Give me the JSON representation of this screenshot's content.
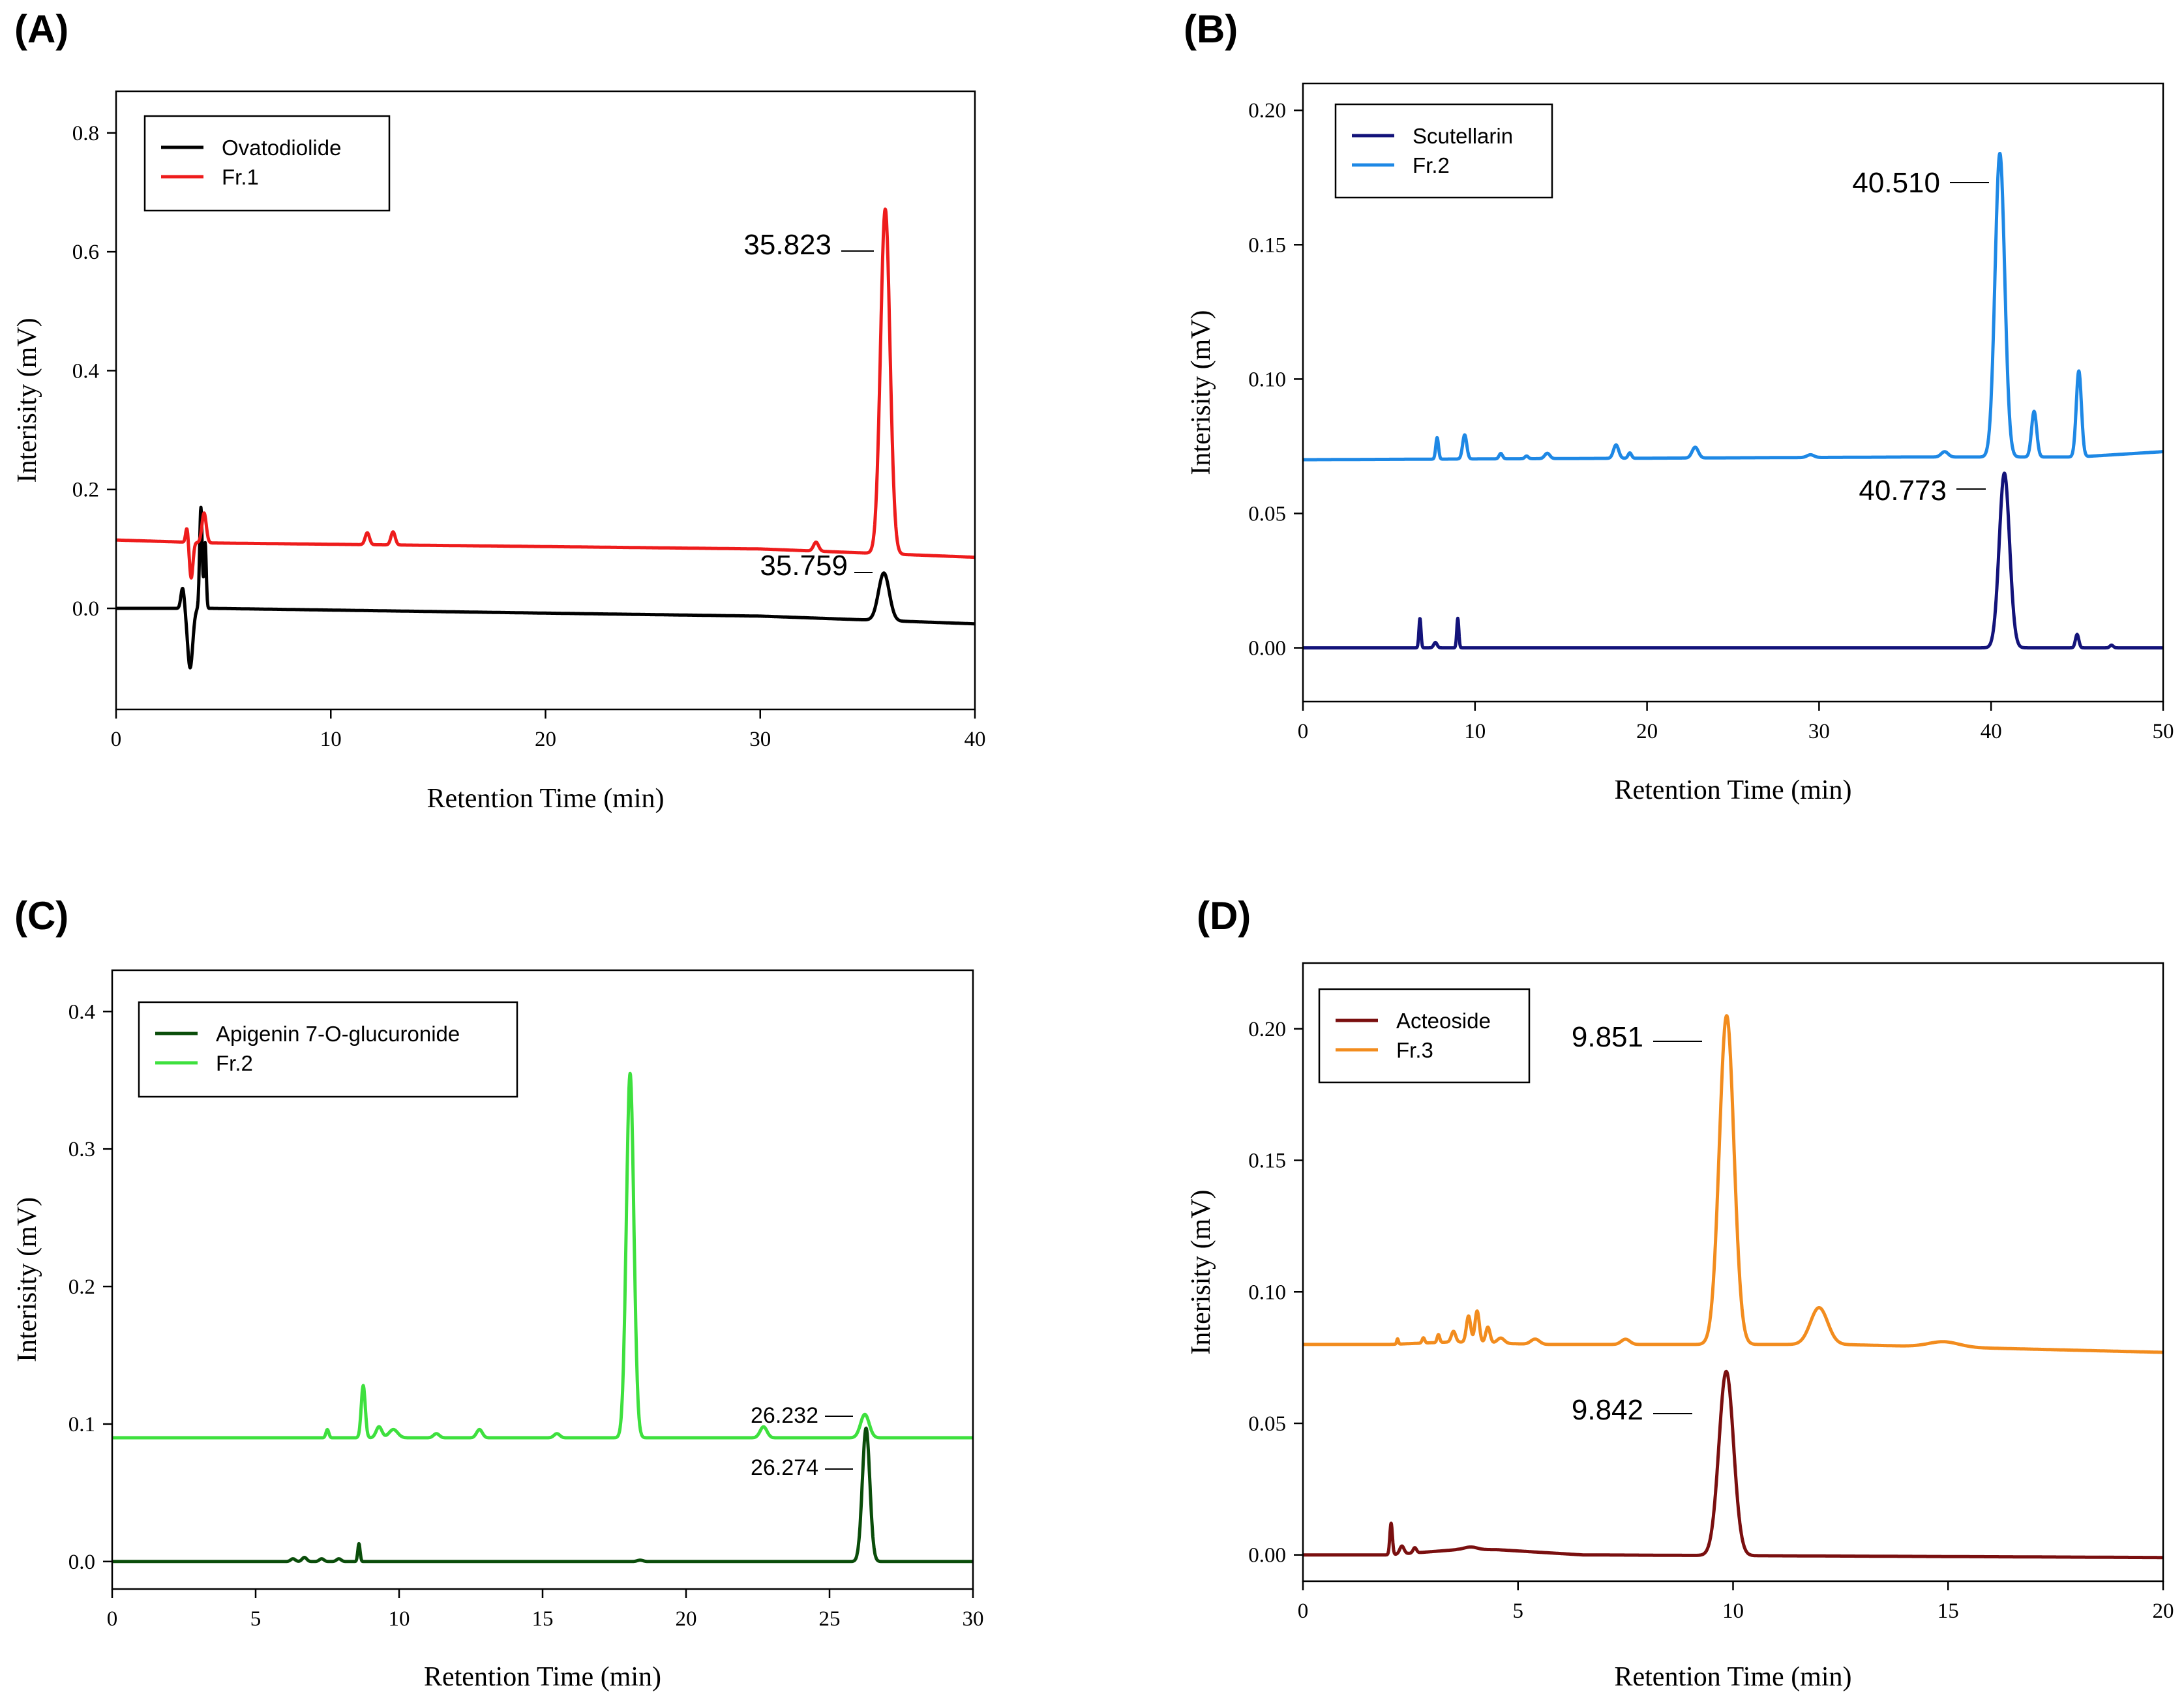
{
  "figure": {
    "background": "#ffffff"
  },
  "chart_data": [
    {
      "type": "line",
      "panel": "(A)",
      "title": "",
      "xlabel": "Retention Time (min)",
      "ylabel": "Interisity (mV)",
      "xlim": [
        0,
        40
      ],
      "ylim": [
        -0.17,
        0.87
      ],
      "xticks": [
        0,
        10,
        20,
        30,
        40
      ],
      "xtick_labels": [
        "0",
        "10",
        "20",
        "30",
        "40"
      ],
      "yticks": [
        0.0,
        0.2,
        0.4,
        0.6,
        0.8
      ],
      "ytick_labels": [
        "0.0",
        "0.2",
        "0.4",
        "0.6",
        "0.8"
      ],
      "legend_position": "top-left",
      "series": [
        {
          "name": "Ovatodiolide",
          "color": "#000000",
          "baseline": [
            [
              0,
              0.0
            ],
            [
              4.5,
              0.0
            ],
            [
              20,
              -0.008
            ],
            [
              30,
              -0.013
            ],
            [
              40,
              -0.026
            ]
          ],
          "peaks": [
            [
              3.1,
              0.035,
              0.08
            ],
            [
              3.45,
              -0.1,
              0.12
            ],
            [
              3.95,
              0.17,
              0.06
            ],
            [
              4.15,
              0.11,
              0.05
            ],
            [
              35.759,
              0.08,
              0.25
            ]
          ]
        },
        {
          "name": "Fr.1",
          "color": "#ee1c1c",
          "baseline": [
            [
              0,
              0.115
            ],
            [
              4.5,
              0.11
            ],
            [
              20,
              0.104
            ],
            [
              30,
              0.1
            ],
            [
              40,
              0.086
            ]
          ],
          "peaks": [
            [
              3.3,
              0.025,
              0.06
            ],
            [
              3.5,
              -0.06,
              0.08
            ],
            [
              4.1,
              0.05,
              0.1
            ],
            [
              11.7,
              0.02,
              0.1
            ],
            [
              12.9,
              0.022,
              0.1
            ],
            [
              32.6,
              0.015,
              0.12
            ],
            [
              35.823,
              0.58,
              0.22
            ]
          ]
        }
      ],
      "annotations": [
        {
          "text": "35.823",
          "x": 35.823,
          "y": 0.6
        },
        {
          "text": "35.759",
          "x": 35.759,
          "y": 0.055
        }
      ]
    },
    {
      "type": "line",
      "panel": "(B)",
      "title": "",
      "xlabel": "Retention Time (min)",
      "ylabel": "Interisity (mV)",
      "xlim": [
        0,
        50
      ],
      "ylim": [
        -0.02,
        0.21
      ],
      "xticks": [
        0,
        10,
        20,
        30,
        40,
        50
      ],
      "xtick_labels": [
        "0",
        "10",
        "20",
        "30",
        "40",
        "50"
      ],
      "yticks": [
        0.0,
        0.05,
        0.1,
        0.15,
        0.2
      ],
      "ytick_labels": [
        "0.00",
        "0.05",
        "0.10",
        "0.15",
        "0.20"
      ],
      "legend_position": "top-left",
      "series": [
        {
          "name": "Scutellarin",
          "color": "#13137a",
          "baseline": [
            [
              0,
              0.0
            ],
            [
              50,
              0.0
            ]
          ],
          "peaks": [
            [
              6.8,
              0.011,
              0.06
            ],
            [
              7.7,
              0.002,
              0.1
            ],
            [
              9.0,
              0.011,
              0.06
            ],
            [
              40.773,
              0.065,
              0.3
            ],
            [
              45.0,
              0.005,
              0.1
            ],
            [
              47.0,
              0.001,
              0.1
            ]
          ]
        },
        {
          "name": "Fr.2",
          "color": "#1e88e5",
          "baseline": [
            [
              0,
              0.07
            ],
            [
              35,
              0.071
            ],
            [
              45,
              0.071
            ],
            [
              50,
              0.073
            ]
          ],
          "peaks": [
            [
              7.8,
              0.008,
              0.08
            ],
            [
              9.4,
              0.009,
              0.12
            ],
            [
              11.5,
              0.002,
              0.1
            ],
            [
              13.0,
              0.001,
              0.1
            ],
            [
              14.2,
              0.002,
              0.15
            ],
            [
              18.2,
              0.005,
              0.15
            ],
            [
              19.0,
              0.002,
              0.1
            ],
            [
              22.8,
              0.004,
              0.18
            ],
            [
              29.5,
              0.001,
              0.2
            ],
            [
              37.3,
              0.002,
              0.2
            ],
            [
              40.51,
              0.113,
              0.28
            ],
            [
              42.5,
              0.017,
              0.15
            ],
            [
              45.1,
              0.032,
              0.15
            ]
          ]
        }
      ],
      "annotations": [
        {
          "text": "40.510",
          "x": 40.51,
          "y": 0.179
        },
        {
          "text": "40.773",
          "x": 40.773,
          "y": 0.062
        }
      ]
    },
    {
      "type": "line",
      "panel": "(C)",
      "title": "",
      "xlabel": "Retention Time (min)",
      "ylabel": "Interisity (mV)",
      "xlim": [
        0,
        30
      ],
      "ylim": [
        -0.02,
        0.43
      ],
      "xticks": [
        0,
        5,
        10,
        15,
        20,
        25,
        30
      ],
      "xtick_labels": [
        "0",
        "5",
        "10",
        "15",
        "20",
        "25",
        "30"
      ],
      "yticks": [
        0.0,
        0.1,
        0.2,
        0.3,
        0.4
      ],
      "ytick_labels": [
        "0.0",
        "0.1",
        "0.2",
        "0.3",
        "0.4"
      ],
      "legend_position": "top-left",
      "series": [
        {
          "name": "Apigenin 7-O-glucuronide",
          "color": "#0a4d0a",
          "baseline": [
            [
              0,
              0.0
            ],
            [
              30,
              0.0
            ]
          ],
          "peaks": [
            [
              6.3,
              0.002,
              0.08
            ],
            [
              6.7,
              0.003,
              0.08
            ],
            [
              7.3,
              0.002,
              0.08
            ],
            [
              7.9,
              0.002,
              0.08
            ],
            [
              8.6,
              0.013,
              0.04
            ],
            [
              18.4,
              0.001,
              0.1
            ],
            [
              26.274,
              0.097,
              0.13
            ]
          ]
        },
        {
          "name": "Fr.2",
          "color": "#3ee03e",
          "baseline": [
            [
              0,
              0.09
            ],
            [
              30,
              0.09
            ]
          ],
          "peaks": [
            [
              7.5,
              0.006,
              0.05
            ],
            [
              8.75,
              0.038,
              0.07
            ],
            [
              9.3,
              0.008,
              0.1
            ],
            [
              9.8,
              0.006,
              0.15
            ],
            [
              11.3,
              0.003,
              0.1
            ],
            [
              12.8,
              0.006,
              0.1
            ],
            [
              15.5,
              0.003,
              0.1
            ],
            [
              18.05,
              0.265,
              0.13
            ],
            [
              22.7,
              0.008,
              0.12
            ],
            [
              26.232,
              0.017,
              0.15
            ]
          ]
        }
      ],
      "annotations": [
        {
          "text": "26.232",
          "x": 26.232,
          "y": 0.108
        },
        {
          "text": "26.274",
          "x": 26.274,
          "y": 0.07
        }
      ]
    },
    {
      "type": "line",
      "panel": "(D)",
      "title": "",
      "xlabel": "Retention Time (min)",
      "ylabel": "Interisity (mV)",
      "xlim": [
        0,
        20
      ],
      "ylim": [
        -0.01,
        0.225
      ],
      "xticks": [
        0,
        5,
        10,
        15,
        20
      ],
      "xtick_labels": [
        "0",
        "5",
        "10",
        "15",
        "20"
      ],
      "yticks": [
        0.0,
        0.05,
        0.1,
        0.15,
        0.2
      ],
      "ytick_labels": [
        "0.00",
        "0.05",
        "0.10",
        "0.15",
        "0.20"
      ],
      "legend_position": "top-left",
      "series": [
        {
          "name": "Acteoside",
          "color": "#7a0f0f",
          "baseline": [
            [
              0,
              0.0
            ],
            [
              2.0,
              0.0
            ],
            [
              3.6,
              0.002
            ],
            [
              4.5,
              0.002
            ],
            [
              6.5,
              0.0
            ],
            [
              20,
              -0.001
            ]
          ],
          "peaks": [
            [
              2.05,
              0.012,
              0.03
            ],
            [
              2.3,
              0.003,
              0.05
            ],
            [
              2.6,
              0.002,
              0.04
            ],
            [
              3.9,
              0.001,
              0.15
            ],
            [
              9.842,
              0.07,
              0.17
            ]
          ]
        },
        {
          "name": "Fr.3",
          "color": "#f28c1e",
          "baseline": [
            [
              0,
              0.08
            ],
            [
              2.0,
              0.08
            ],
            [
              3.5,
              0.081
            ],
            [
              5.5,
              0.08
            ],
            [
              12.5,
              0.08
            ],
            [
              20,
              0.077
            ]
          ],
          "peaks": [
            [
              2.2,
              0.002,
              0.02
            ],
            [
              2.8,
              0.002,
              0.03
            ],
            [
              3.15,
              0.003,
              0.03
            ],
            [
              3.5,
              0.004,
              0.05
            ],
            [
              3.85,
              0.01,
              0.05
            ],
            [
              4.05,
              0.012,
              0.05
            ],
            [
              4.3,
              0.006,
              0.05
            ],
            [
              4.6,
              0.002,
              0.08
            ],
            [
              5.4,
              0.002,
              0.1
            ],
            [
              7.5,
              0.002,
              0.1
            ],
            [
              9.851,
              0.125,
              0.17
            ],
            [
              12.0,
              0.014,
              0.2
            ],
            [
              14.9,
              0.002,
              0.35
            ]
          ]
        }
      ],
      "annotations": [
        {
          "text": "9.851",
          "x": 9.851,
          "y": 0.193
        },
        {
          "text": "9.842",
          "x": 9.842,
          "y": 0.059
        }
      ]
    }
  ]
}
